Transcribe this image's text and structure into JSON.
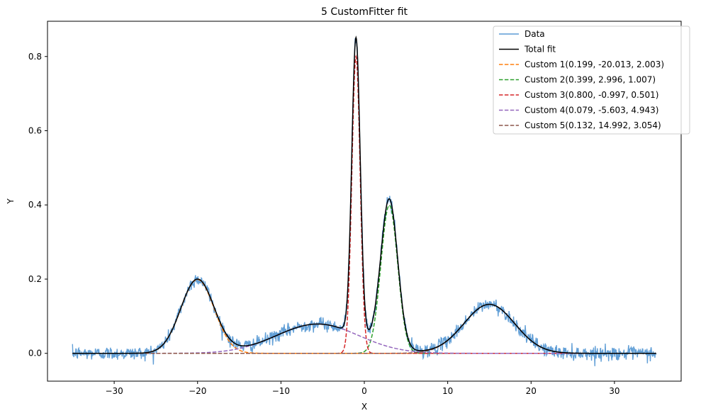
{
  "chart_data": {
    "type": "line",
    "title": "5 CustomFitter fit",
    "xlabel": "X",
    "ylabel": "Y",
    "xlim": [
      -38,
      38
    ],
    "ylim": [
      -0.075,
      0.895
    ],
    "x_range": [
      -35,
      35
    ],
    "xticks": [
      -30,
      -20,
      -10,
      0,
      10,
      20,
      30
    ],
    "xtick_labels": [
      "−30",
      "−20",
      "−10",
      "0",
      "10",
      "20",
      "30"
    ],
    "yticks": [
      0.0,
      0.2,
      0.4,
      0.6,
      0.8
    ],
    "ytick_labels": [
      "0.0",
      "0.2",
      "0.4",
      "0.6",
      "0.8"
    ],
    "grid": false,
    "legend_position": "top-right",
    "noise_std": 0.009,
    "components": [
      {
        "name": "Custom 1(0.199, -20.013, 2.003)",
        "amplitude": 0.199,
        "center": -20.013,
        "sigma": 2.003,
        "color": "#ff7f0e"
      },
      {
        "name": "Custom 2(0.399, 2.996, 1.007)",
        "amplitude": 0.399,
        "center": 2.996,
        "sigma": 1.007,
        "color": "#2ca02c"
      },
      {
        "name": "Custom 3(0.800, -0.997, 0.501)",
        "amplitude": 0.8,
        "center": -0.997,
        "sigma": 0.501,
        "color": "#d62728"
      },
      {
        "name": "Custom 4(0.079, -5.603, 4.943)",
        "amplitude": 0.079,
        "center": -5.603,
        "sigma": 4.943,
        "color": "#9467bd"
      },
      {
        "name": "Custom 5(0.132, 14.992, 3.054)",
        "amplitude": 0.132,
        "center": 14.992,
        "sigma": 3.054,
        "color": "#8c564b"
      }
    ],
    "series": [
      {
        "name": "Data",
        "style": "solid",
        "color": "#5b9bd5"
      },
      {
        "name": "Total fit",
        "style": "solid",
        "color": "#000000"
      }
    ]
  }
}
